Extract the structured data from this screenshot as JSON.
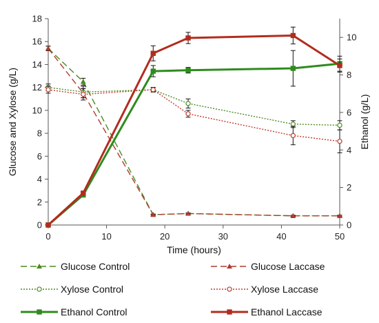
{
  "chart_data": {
    "type": "line",
    "xlabel": "Time (hours)",
    "ylabel_left": "Glucose and Xylose (g/L)",
    "ylabel_right": "Ethanol (g/L)",
    "xlim": [
      0,
      50
    ],
    "xticks": [
      0,
      10,
      20,
      30,
      40,
      50
    ],
    "ylim_left": [
      0,
      18
    ],
    "yticks_left": [
      0,
      2,
      4,
      6,
      8,
      10,
      12,
      14,
      16,
      18
    ],
    "ylim_right": [
      0,
      11
    ],
    "yticks_right": [
      0,
      2,
      4,
      6,
      8,
      10
    ],
    "legend_position": "bottom",
    "series": [
      {
        "name": "Glucose Control",
        "axis": "left",
        "color": "#4a8a1e",
        "line": "longdash",
        "marker": "triangle-filled",
        "x": [
          0,
          6,
          18,
          24,
          42,
          50
        ],
        "y": [
          15.4,
          12.5,
          0.9,
          1.0,
          0.8,
          0.8
        ],
        "err": [
          0.2,
          0.3,
          0.05,
          0.05,
          0.05,
          0.05
        ]
      },
      {
        "name": "Glucose Laccase",
        "axis": "left",
        "color": "#b03a2e",
        "line": "longdash",
        "marker": "triangle-filled",
        "x": [
          0,
          6,
          18,
          24,
          42,
          50
        ],
        "y": [
          15.4,
          11.5,
          0.9,
          1.0,
          0.8,
          0.8
        ],
        "err": [
          0.2,
          0.4,
          0.05,
          0.05,
          0.05,
          0.05
        ]
      },
      {
        "name": "Xylose Control",
        "axis": "left",
        "color": "#4a8a1e",
        "line": "dot",
        "marker": "circle-open",
        "x": [
          0,
          6,
          18,
          24,
          42,
          50
        ],
        "y": [
          12.0,
          11.6,
          11.8,
          10.6,
          8.8,
          8.7
        ],
        "err": [
          0.3,
          0.5,
          0.2,
          0.4,
          0.3,
          0.4
        ]
      },
      {
        "name": "Xylose Laccase",
        "axis": "left",
        "color": "#c0392b",
        "line": "dot",
        "marker": "circle-open",
        "x": [
          0,
          6,
          18,
          24,
          42,
          50
        ],
        "y": [
          11.8,
          11.4,
          11.8,
          9.7,
          7.8,
          7.3
        ],
        "err": [
          0.3,
          0.5,
          0.2,
          0.3,
          0.8,
          1.0
        ]
      },
      {
        "name": "Ethanol Control",
        "axis": "right",
        "color": "#2e8b1e",
        "line": "solid",
        "marker": "square-filled",
        "x": [
          0,
          6,
          18,
          24,
          42,
          50
        ],
        "y": [
          0,
          1.6,
          8.2,
          8.25,
          8.35,
          8.6
        ],
        "err": [
          0,
          0.1,
          0.3,
          0.15,
          0.95,
          0.4
        ]
      },
      {
        "name": "Ethanol Laccase",
        "axis": "right",
        "color": "#b22c1e",
        "line": "solid",
        "marker": "square-filled",
        "x": [
          0,
          6,
          18,
          24,
          42,
          50
        ],
        "y": [
          0,
          1.7,
          9.15,
          9.97,
          10.1,
          8.5
        ],
        "err": [
          0,
          0.1,
          0.4,
          0.3,
          0.45,
          0.35
        ]
      }
    ]
  }
}
